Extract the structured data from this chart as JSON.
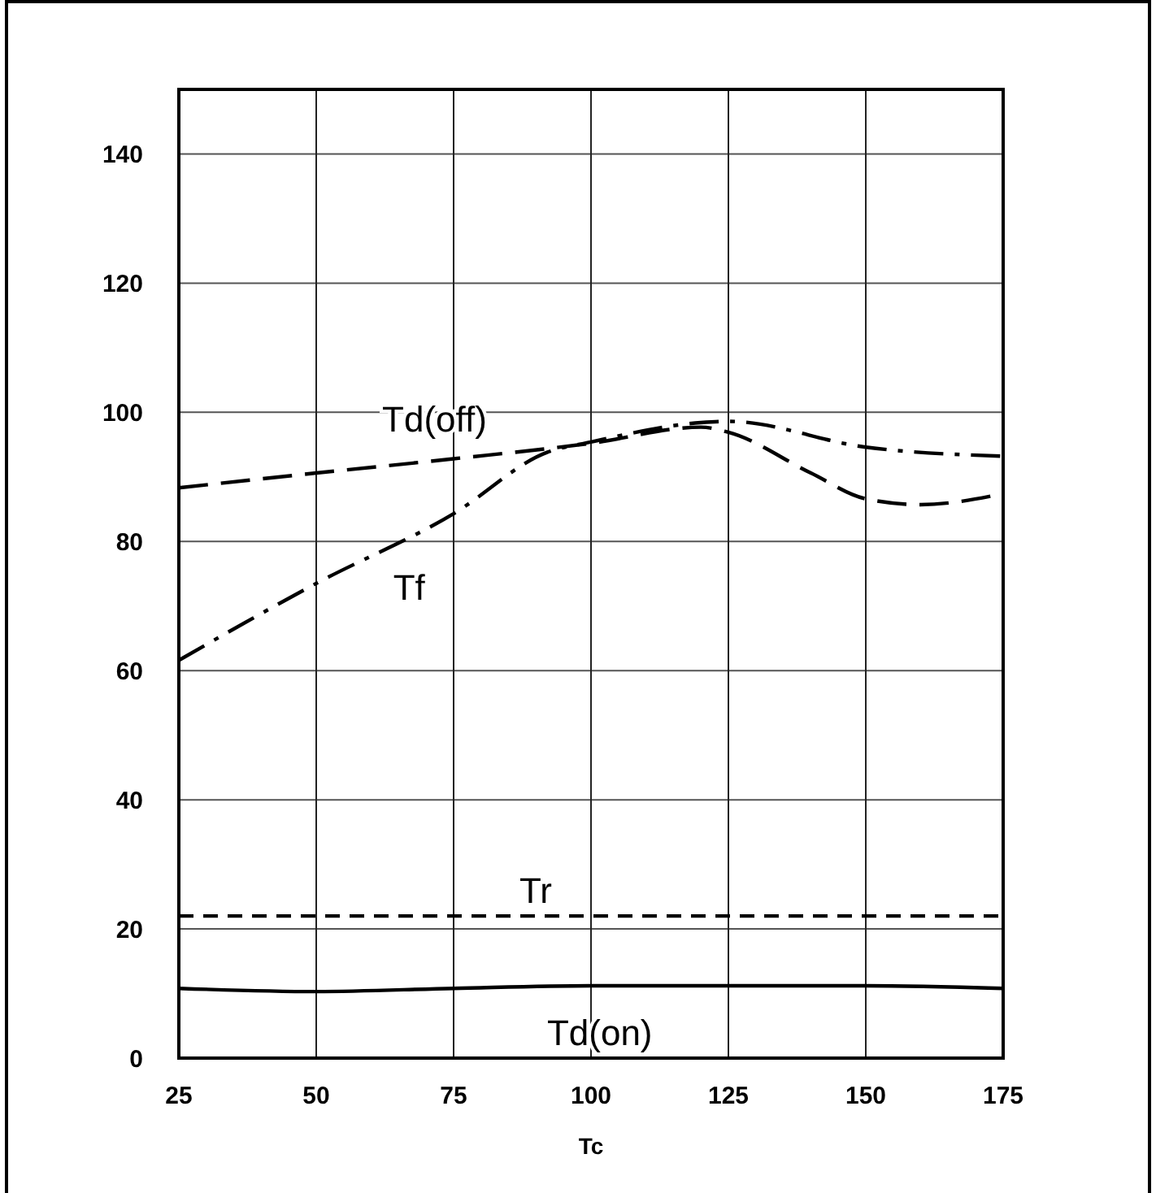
{
  "chart_data": {
    "type": "line",
    "xlabel": "Tc",
    "xlim": [
      25,
      175
    ],
    "xticks": [
      25,
      50,
      75,
      100,
      125,
      150,
      175
    ],
    "ylim": [
      0,
      150
    ],
    "yticks": [
      0,
      20,
      40,
      60,
      80,
      100,
      120,
      140
    ],
    "grid": true,
    "marker": "none",
    "series": [
      {
        "name": "Td(off)",
        "color": "#000000",
        "line_style": "dashed",
        "x": [
          25,
          50,
          75,
          100,
          120,
          125,
          140,
          150,
          160,
          175
        ],
        "values": [
          88.3,
          90.6,
          92.8,
          95.2,
          97.7,
          96.9,
          90.6,
          86.6,
          85.7,
          87.4
        ]
      },
      {
        "name": "Tf",
        "color": "#000000",
        "line_style": "dashdot",
        "x": [
          25,
          50,
          75,
          92,
          100,
          120,
          125,
          150,
          175
        ],
        "values": [
          61.6,
          73.5,
          84.3,
          93.8,
          95.4,
          98.4,
          98.6,
          94.6,
          93.2
        ]
      },
      {
        "name": "Tr",
        "color": "#000000",
        "line_style": "dashed",
        "x": [
          25,
          175
        ],
        "values": [
          22,
          22
        ]
      },
      {
        "name": "Td(on)",
        "color": "#000000",
        "line_style": "solid",
        "x": [
          25,
          50,
          75,
          100,
          125,
          150,
          175
        ],
        "values": [
          10.8,
          10.3,
          10.8,
          11.2,
          11.2,
          11.2,
          10.8
        ]
      }
    ]
  }
}
